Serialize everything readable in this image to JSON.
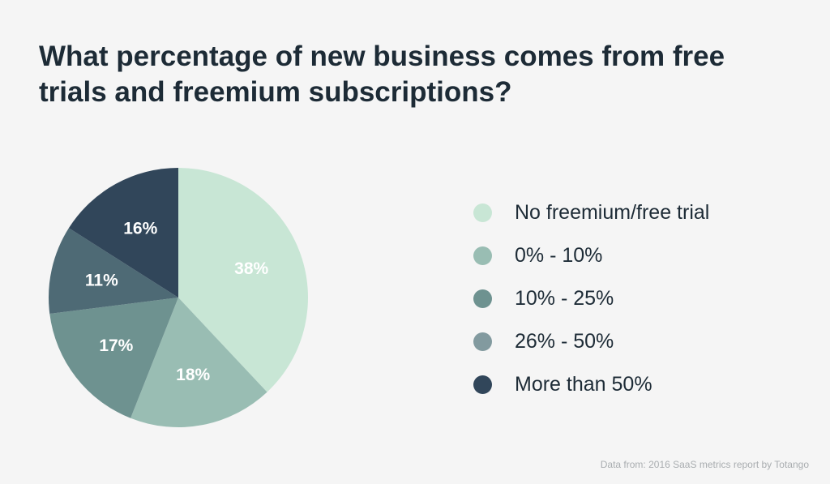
{
  "chart_data": {
    "type": "pie",
    "title_lines": [
      "What percentage of new business comes from free",
      "trials and freemium subscriptions?"
    ],
    "start_angle_deg": 0,
    "direction": "clockwise",
    "slices": [
      {
        "label": "No freemium/free trial",
        "value": 38,
        "display": "38%",
        "color": "#c8e6d5"
      },
      {
        "label": "0% - 10%",
        "value": 18,
        "display": "18%",
        "color": "#99bdb3"
      },
      {
        "label": "10% - 25%",
        "value": 17,
        "display": "17%",
        "color": "#6e9290"
      },
      {
        "label": "26% - 50%",
        "value": 11,
        "display": "11%",
        "color": "#4e6a75"
      },
      {
        "label": "More than 50%",
        "value": 16,
        "display": "16%",
        "color": "#31465a"
      }
    ],
    "legend_colors": [
      "#c8e6d5",
      "#99bdb3",
      "#6e9290",
      "#829a9f",
      "#31465a"
    ],
    "label_color": "#ffffff"
  },
  "footnote": "Data from: 2016 SaaS metrics report by Totango"
}
